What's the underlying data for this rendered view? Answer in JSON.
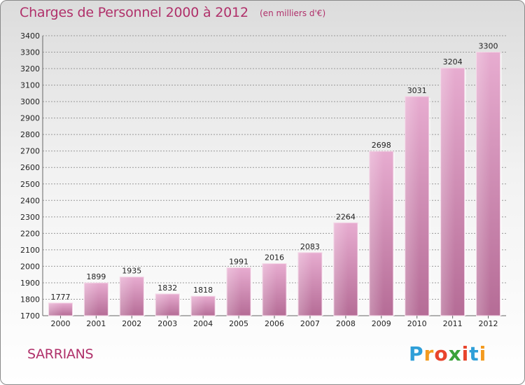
{
  "chart_data": {
    "type": "bar",
    "title": "Charges de Personnel 2000 à 2012",
    "subtitle": "(en milliers d'€)",
    "categories": [
      "2000",
      "2001",
      "2002",
      "2003",
      "2004",
      "2005",
      "2006",
      "2007",
      "2008",
      "2009",
      "2010",
      "2011",
      "2012"
    ],
    "values": [
      1777,
      1899,
      1935,
      1832,
      1818,
      1991,
      2016,
      2083,
      2264,
      2698,
      3031,
      3204,
      3300
    ],
    "ylim": [
      1700,
      3400
    ],
    "yticks": [
      1700,
      1800,
      1900,
      2000,
      2100,
      2200,
      2300,
      2400,
      2500,
      2600,
      2700,
      2800,
      2900,
      3000,
      3100,
      3200,
      3300,
      3400
    ],
    "xlabel": "",
    "ylabel": "",
    "grid": true,
    "bar_color": "#c77ba6"
  },
  "footer": {
    "city": "SARRIANS",
    "logo": [
      "P",
      "r",
      "o",
      "x",
      "i",
      "t",
      "i"
    ],
    "logo_colors": [
      "#2f9fd8",
      "#f39a1e",
      "#e8442c",
      "#3aa23a",
      "#e8442c",
      "#2f9fd8",
      "#f39a1e"
    ]
  }
}
